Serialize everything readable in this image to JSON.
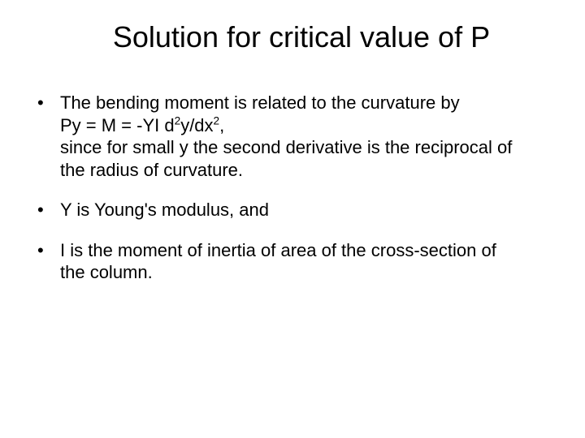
{
  "title": "Solution for critical value of P",
  "bullets": {
    "b1": {
      "line1": "The bending moment is related to the curvature by",
      "eq_prefix": "Py = M = -YI d",
      "sup1": "2",
      "eq_mid": "y/dx",
      "sup2": "2",
      "eq_suffix": ",",
      "line3a": "since for small y the second derivative is the reciprocal of",
      "line3b": "the radius of curvature."
    },
    "b2": "Y is Young's modulus, and",
    "b3a": "I is the moment of inertia of area of the cross-section of",
    "b3b": "the column."
  },
  "colors": {
    "background": "#ffffff",
    "text": "#000000"
  },
  "typography": {
    "font_family": "Arial",
    "title_fontsize": 36,
    "body_fontsize": 22
  }
}
